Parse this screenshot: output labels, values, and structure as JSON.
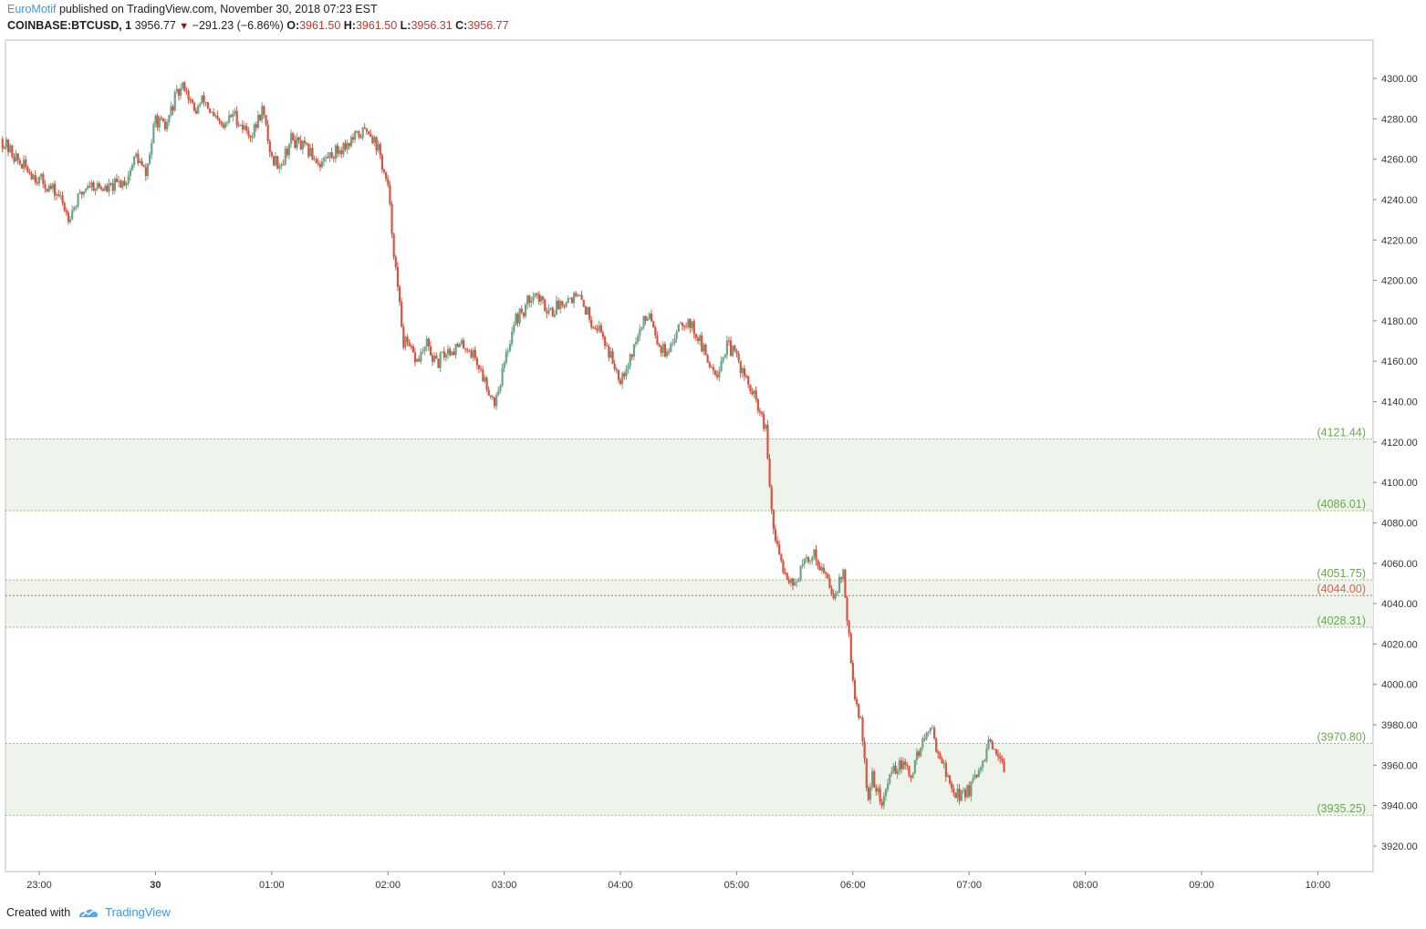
{
  "header": {
    "author": "EuroMotif",
    "published_text": "published on TradingView.com, November 30, 2018 07:23 EST",
    "symbol": "COINBASE:BTCUSD, 1",
    "last_price": "3956.77",
    "change": "−291.23 (−6.86%)",
    "o_label": "O:",
    "o_value": "3961.50",
    "h_label": "H:",
    "h_value": "3961.50",
    "l_label": "L:",
    "l_value": "3956.31",
    "c_label": "C:",
    "c_value": "3956.77"
  },
  "footer": {
    "created_with": "Created with",
    "brand": "TradingView"
  },
  "colors": {
    "up": "#6ba583",
    "down": "#d75442",
    "zone_fill": "#eef4ec",
    "zone_line": "#8fc17a",
    "zone_label": "#6aa84f",
    "level_red": "#e06050"
  },
  "chart_data": {
    "type": "candlestick",
    "symbol": "COINBASE:BTCUSD",
    "interval": "1",
    "y_axis": {
      "min": 3910,
      "max": 4310,
      "ticks": [
        3920,
        3940,
        3960,
        3980,
        4000,
        4020,
        4040,
        4060,
        4080,
        4100,
        4120,
        4140,
        4160,
        4180,
        4200,
        4220,
        4240,
        4260,
        4280,
        4300
      ],
      "tick_format": "2dp"
    },
    "x_axis": {
      "range": [
        "22:40",
        "10:20"
      ],
      "ticks": [
        "23:00",
        "30",
        "01:00",
        "02:00",
        "03:00",
        "04:00",
        "05:00",
        "06:00",
        "07:00",
        "08:00",
        "09:00",
        "10:00"
      ]
    },
    "zones": [
      {
        "top": 4121.44,
        "bottom": 4086.01,
        "top_label": "(4121.44)",
        "bottom_label": "(4086.01)"
      },
      {
        "top": 4051.75,
        "bottom": 4028.31,
        "top_label": "(4051.75)",
        "bottom_label": "(4028.31)"
      },
      {
        "top": 3970.8,
        "bottom": 3935.25,
        "top_label": "(3970.80)",
        "bottom_label": "(3935.25)"
      }
    ],
    "levels": [
      {
        "value": 4044.0,
        "label": "(4044.00)",
        "color": "#e06050"
      }
    ],
    "price_path": [
      [
        "22:40",
        4270
      ],
      [
        "22:50",
        4258
      ],
      [
        "23:00",
        4250
      ],
      [
        "23:10",
        4242
      ],
      [
        "23:15",
        4232
      ],
      [
        "23:25",
        4248
      ],
      [
        "23:35",
        4245
      ],
      [
        "23:45",
        4250
      ],
      [
        "23:50",
        4262
      ],
      [
        "23:55",
        4252
      ],
      [
        "00:00",
        4280
      ],
      [
        "00:05",
        4275
      ],
      [
        "00:10",
        4290
      ],
      [
        "00:15",
        4297
      ],
      [
        "00:20",
        4283
      ],
      [
        "00:25",
        4290
      ],
      [
        "00:30",
        4280
      ],
      [
        "00:35",
        4275
      ],
      [
        "00:40",
        4283
      ],
      [
        "00:45",
        4276
      ],
      [
        "00:50",
        4272
      ],
      [
        "00:55",
        4285
      ],
      [
        "01:00",
        4260
      ],
      [
        "01:05",
        4258
      ],
      [
        "01:10",
        4270
      ],
      [
        "01:20",
        4263
      ],
      [
        "01:25",
        4258
      ],
      [
        "01:30",
        4262
      ],
      [
        "01:35",
        4265
      ],
      [
        "01:45",
        4272
      ],
      [
        "01:50",
        4275
      ],
      [
        "01:55",
        4265
      ],
      [
        "02:00",
        4245
      ],
      [
        "02:05",
        4195
      ],
      [
        "02:08",
        4170
      ],
      [
        "02:15",
        4160
      ],
      [
        "02:20",
        4168
      ],
      [
        "02:25",
        4158
      ],
      [
        "02:30",
        4165
      ],
      [
        "02:40",
        4168
      ],
      [
        "02:45",
        4162
      ],
      [
        "02:50",
        4150
      ],
      [
        "02:55",
        4140
      ],
      [
        "03:00",
        4158
      ],
      [
        "03:05",
        4180
      ],
      [
        "03:10",
        4185
      ],
      [
        "03:15",
        4195
      ],
      [
        "03:20",
        4188
      ],
      [
        "03:25",
        4185
      ],
      [
        "03:30",
        4190
      ],
      [
        "03:35",
        4192
      ],
      [
        "03:40",
        4190
      ],
      [
        "03:45",
        4180
      ],
      [
        "03:50",
        4175
      ],
      [
        "03:55",
        4162
      ],
      [
        "04:00",
        4152
      ],
      [
        "04:05",
        4162
      ],
      [
        "04:10",
        4175
      ],
      [
        "04:15",
        4185
      ],
      [
        "04:20",
        4168
      ],
      [
        "04:25",
        4162
      ],
      [
        "04:30",
        4180
      ],
      [
        "04:35",
        4180
      ],
      [
        "04:40",
        4172
      ],
      [
        "04:45",
        4160
      ],
      [
        "04:50",
        4155
      ],
      [
        "04:55",
        4168
      ],
      [
        "05:00",
        4162
      ],
      [
        "05:05",
        4150
      ],
      [
        "05:10",
        4140
      ],
      [
        "05:15",
        4125
      ],
      [
        "05:18",
        4085
      ],
      [
        "05:20",
        4070
      ],
      [
        "05:25",
        4055
      ],
      [
        "05:30",
        4050
      ],
      [
        "05:35",
        4060
      ],
      [
        "05:40",
        4065
      ],
      [
        "05:45",
        4055
      ],
      [
        "05:50",
        4045
      ],
      [
        "05:55",
        4055
      ],
      [
        "06:00",
        4000
      ],
      [
        "06:05",
        3975
      ],
      [
        "06:08",
        3940
      ],
      [
        "06:10",
        3955
      ],
      [
        "06:15",
        3940
      ],
      [
        "06:20",
        3958
      ],
      [
        "06:25",
        3960
      ],
      [
        "06:30",
        3955
      ],
      [
        "06:35",
        3970
      ],
      [
        "06:40",
        3978
      ],
      [
        "06:45",
        3965
      ],
      [
        "06:50",
        3950
      ],
      [
        "06:55",
        3945
      ],
      [
        "07:00",
        3948
      ],
      [
        "07:05",
        3955
      ],
      [
        "07:10",
        3970
      ],
      [
        "07:15",
        3962
      ],
      [
        "07:18",
        3957
      ]
    ],
    "last_close": 3956.77
  }
}
